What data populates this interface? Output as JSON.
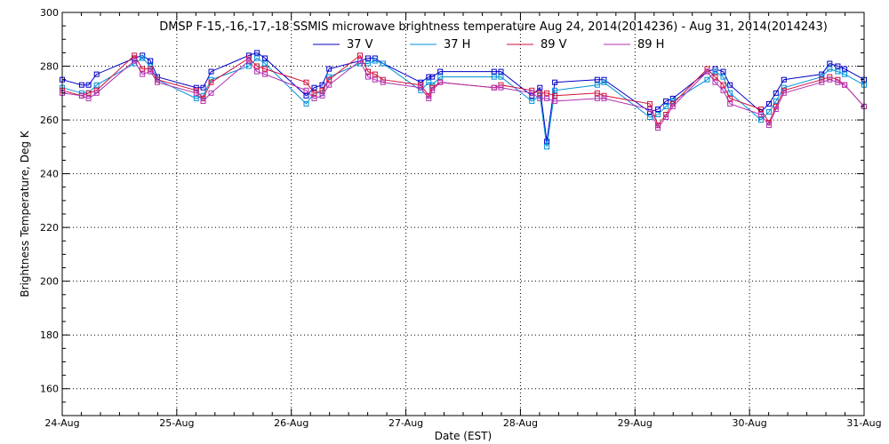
{
  "chart_data": {
    "type": "line",
    "title": "DMSP F-15,-16,-17,-18 SSMIS microwave brightness temperature Aug 24, 2014(2014236) - Aug 31, 2014(2014243)",
    "xlabel": "Date (EST)",
    "ylabel": "Brightness Temperature, Deg K",
    "xlim": [
      0,
      7
    ],
    "ylim": [
      150,
      300
    ],
    "x_ticks": [
      {
        "value": 0,
        "label": "24-Aug"
      },
      {
        "value": 1,
        "label": "25-Aug"
      },
      {
        "value": 2,
        "label": "26-Aug"
      },
      {
        "value": 3,
        "label": "27-Aug"
      },
      {
        "value": 4,
        "label": "28-Aug"
      },
      {
        "value": 5,
        "label": "29-Aug"
      },
      {
        "value": 6,
        "label": "30-Aug"
      },
      {
        "value": 7,
        "label": "31-Aug"
      }
    ],
    "y_ticks": [
      160,
      180,
      200,
      220,
      240,
      260,
      280,
      300
    ],
    "grid": true,
    "legend_position": "top-center",
    "series": [
      {
        "name": "37 V",
        "color": "#0000c8",
        "points": [
          [
            0,
            275
          ],
          [
            0.17,
            273
          ],
          [
            0.23,
            273
          ],
          [
            0.3,
            277
          ],
          [
            0.63,
            283
          ],
          [
            0.7,
            284
          ],
          [
            0.77,
            282
          ],
          [
            0.83,
            276
          ],
          [
            1.17,
            272
          ],
          [
            1.23,
            272
          ],
          [
            1.3,
            278
          ],
          [
            1.63,
            284
          ],
          [
            1.7,
            285
          ],
          [
            1.77,
            283
          ],
          [
            2.13,
            269
          ],
          [
            2.2,
            272
          ],
          [
            2.27,
            273
          ],
          [
            2.33,
            279
          ],
          [
            2.6,
            282
          ],
          [
            2.67,
            283
          ],
          [
            2.73,
            283
          ],
          [
            2.8,
            281
          ],
          [
            3.13,
            274
          ],
          [
            3.2,
            276
          ],
          [
            3.23,
            276
          ],
          [
            3.3,
            278
          ],
          [
            3.77,
            278
          ],
          [
            3.83,
            278
          ],
          [
            4.1,
            269
          ],
          [
            4.17,
            272
          ],
          [
            4.23,
            252
          ],
          [
            4.3,
            274
          ],
          [
            4.67,
            275
          ],
          [
            4.73,
            275
          ],
          [
            5.13,
            263
          ],
          [
            5.2,
            264
          ],
          [
            5.27,
            267
          ],
          [
            5.33,
            268
          ],
          [
            5.63,
            278
          ],
          [
            5.7,
            279
          ],
          [
            5.77,
            278
          ],
          [
            5.83,
            273
          ],
          [
            6.1,
            263
          ],
          [
            6.17,
            266
          ],
          [
            6.23,
            270
          ],
          [
            6.3,
            275
          ],
          [
            6.63,
            277
          ],
          [
            6.7,
            281
          ],
          [
            6.77,
            280
          ],
          [
            6.83,
            279
          ],
          [
            7,
            275
          ]
        ]
      },
      {
        "name": "37 H",
        "color": "#0090d8",
        "points": [
          [
            0,
            272
          ],
          [
            0.17,
            270
          ],
          [
            0.23,
            270
          ],
          [
            0.3,
            273
          ],
          [
            0.63,
            281
          ],
          [
            0.7,
            283
          ],
          [
            0.77,
            280
          ],
          [
            0.83,
            275
          ],
          [
            1.17,
            268
          ],
          [
            1.23,
            269
          ],
          [
            1.3,
            275
          ],
          [
            1.63,
            280
          ],
          [
            1.7,
            283
          ],
          [
            1.77,
            281
          ],
          [
            2.13,
            266
          ],
          [
            2.2,
            270
          ],
          [
            2.27,
            270
          ],
          [
            2.33,
            276
          ],
          [
            2.6,
            281
          ],
          [
            2.67,
            281
          ],
          [
            2.73,
            282
          ],
          [
            2.8,
            281
          ],
          [
            3.13,
            271
          ],
          [
            3.2,
            274
          ],
          [
            3.23,
            273
          ],
          [
            3.3,
            276
          ],
          [
            3.77,
            276
          ],
          [
            3.83,
            276
          ],
          [
            4.1,
            267
          ],
          [
            4.17,
            269
          ],
          [
            4.23,
            250
          ],
          [
            4.3,
            271
          ],
          [
            4.67,
            273
          ],
          [
            4.73,
            274
          ],
          [
            5.13,
            261
          ],
          [
            5.2,
            262
          ],
          [
            5.27,
            265
          ],
          [
            5.33,
            267
          ],
          [
            5.63,
            275
          ],
          [
            5.7,
            278
          ],
          [
            5.77,
            276
          ],
          [
            5.83,
            270
          ],
          [
            6.1,
            260
          ],
          [
            6.17,
            263
          ],
          [
            6.23,
            267
          ],
          [
            6.3,
            272
          ],
          [
            6.63,
            276
          ],
          [
            6.7,
            279
          ],
          [
            6.77,
            278
          ],
          [
            6.83,
            277
          ],
          [
            7,
            273
          ]
        ]
      },
      {
        "name": "89 V",
        "color": "#d0103c",
        "points": [
          [
            0,
            271
          ],
          [
            0.17,
            269
          ],
          [
            0.23,
            270
          ],
          [
            0.3,
            271
          ],
          [
            0.63,
            284
          ],
          [
            0.7,
            279
          ],
          [
            0.77,
            279
          ],
          [
            0.83,
            275
          ],
          [
            1.17,
            271
          ],
          [
            1.23,
            268
          ],
          [
            1.3,
            274
          ],
          [
            1.63,
            283
          ],
          [
            1.7,
            280
          ],
          [
            1.77,
            279
          ],
          [
            2.13,
            274
          ],
          [
            2.2,
            270
          ],
          [
            2.27,
            271
          ],
          [
            2.33,
            275
          ],
          [
            2.6,
            284
          ],
          [
            2.67,
            278
          ],
          [
            2.73,
            277
          ],
          [
            2.8,
            275
          ],
          [
            3.13,
            273
          ],
          [
            3.2,
            269
          ],
          [
            3.23,
            272
          ],
          [
            3.3,
            274
          ],
          [
            3.77,
            272
          ],
          [
            3.83,
            273
          ],
          [
            4.1,
            271
          ],
          [
            4.17,
            270
          ],
          [
            4.23,
            270
          ],
          [
            4.3,
            269
          ],
          [
            4.67,
            270
          ],
          [
            4.73,
            269
          ],
          [
            5.13,
            266
          ],
          [
            5.2,
            258
          ],
          [
            5.27,
            262
          ],
          [
            5.33,
            266
          ],
          [
            5.63,
            279
          ],
          [
            5.7,
            276
          ],
          [
            5.77,
            273
          ],
          [
            5.83,
            268
          ],
          [
            6.1,
            264
          ],
          [
            6.17,
            259
          ],
          [
            6.23,
            265
          ],
          [
            6.3,
            271
          ],
          [
            6.63,
            275
          ],
          [
            6.7,
            276
          ],
          [
            6.77,
            275
          ],
          [
            6.83,
            273
          ],
          [
            7,
            265
          ]
        ]
      },
      {
        "name": "89 H",
        "color": "#b030b0",
        "points": [
          [
            0,
            270
          ],
          [
            0.17,
            269
          ],
          [
            0.23,
            268
          ],
          [
            0.3,
            270
          ],
          [
            0.63,
            282
          ],
          [
            0.7,
            277
          ],
          [
            0.77,
            278
          ],
          [
            0.83,
            274
          ],
          [
            1.17,
            270
          ],
          [
            1.23,
            267
          ],
          [
            1.3,
            270
          ],
          [
            1.63,
            282
          ],
          [
            1.7,
            278
          ],
          [
            1.77,
            277
          ],
          [
            2.13,
            271
          ],
          [
            2.2,
            268
          ],
          [
            2.27,
            269
          ],
          [
            2.33,
            273
          ],
          [
            2.6,
            282
          ],
          [
            2.67,
            276
          ],
          [
            2.73,
            275
          ],
          [
            2.8,
            274
          ],
          [
            3.13,
            272
          ],
          [
            3.2,
            268
          ],
          [
            3.23,
            271
          ],
          [
            3.3,
            274
          ],
          [
            3.77,
            272
          ],
          [
            3.83,
            272
          ],
          [
            4.1,
            270
          ],
          [
            4.17,
            268
          ],
          [
            4.23,
            268
          ],
          [
            4.3,
            267
          ],
          [
            4.67,
            268
          ],
          [
            4.73,
            268
          ],
          [
            5.13,
            264
          ],
          [
            5.2,
            257
          ],
          [
            5.27,
            261
          ],
          [
            5.33,
            265
          ],
          [
            5.63,
            278
          ],
          [
            5.7,
            274
          ],
          [
            5.77,
            271
          ],
          [
            5.83,
            266
          ],
          [
            6.1,
            262
          ],
          [
            6.17,
            258
          ],
          [
            6.23,
            264
          ],
          [
            6.3,
            270
          ],
          [
            6.63,
            274
          ],
          [
            6.7,
            275
          ],
          [
            6.77,
            274
          ],
          [
            6.83,
            273
          ],
          [
            7,
            265
          ]
        ]
      }
    ]
  }
}
